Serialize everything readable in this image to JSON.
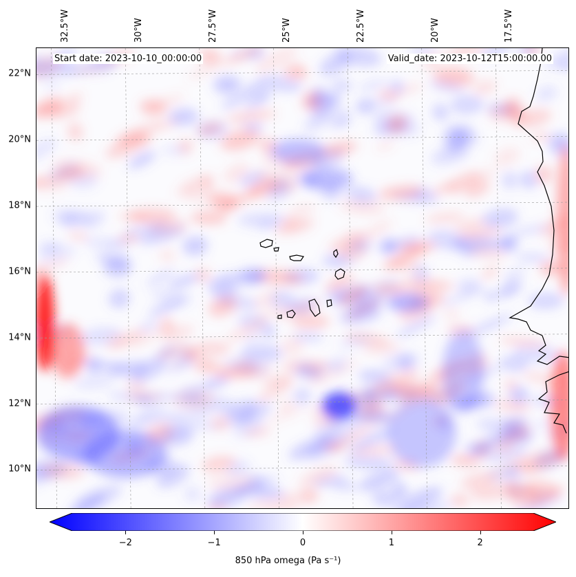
{
  "header": {
    "start_date": "Start date: 2023-10-10_00:00:00",
    "valid_date": "Valid_date: 2023-10-12T15:00:00.00"
  },
  "map": {
    "lon_range": [
      -33.0,
      -15.0
    ],
    "lat_range": [
      8.8,
      22.8
    ],
    "lon_ticks": [
      "32.5°W",
      "30°W",
      "27.5°W",
      "25°W",
      "22.5°W",
      "20°W",
      "17.5°W"
    ],
    "lon_tick_values": [
      -32.5,
      -30,
      -27.5,
      -25,
      -22.5,
      -20,
      -17.5
    ],
    "lat_ticks": [
      "22°N",
      "20°N",
      "18°N",
      "16°N",
      "14°N",
      "12°N",
      "10°N"
    ],
    "lat_tick_values": [
      22,
      20,
      18,
      16,
      14,
      12,
      10
    ],
    "gridlines": true,
    "features": [
      "coastline-africa",
      "cape-verde-islands"
    ],
    "field": "850 hPa omega"
  },
  "colorbar": {
    "min": -2.6,
    "max": 2.6,
    "ticks": [
      "−2",
      "−1",
      "0",
      "1",
      "2"
    ],
    "tick_values": [
      -2,
      -1,
      0,
      1,
      2
    ],
    "label": "850 hPa omega (Pa s⁻¹)",
    "extend": "both",
    "colormap": [
      "#0000ff",
      "#ffffff",
      "#ff0000"
    ]
  }
}
